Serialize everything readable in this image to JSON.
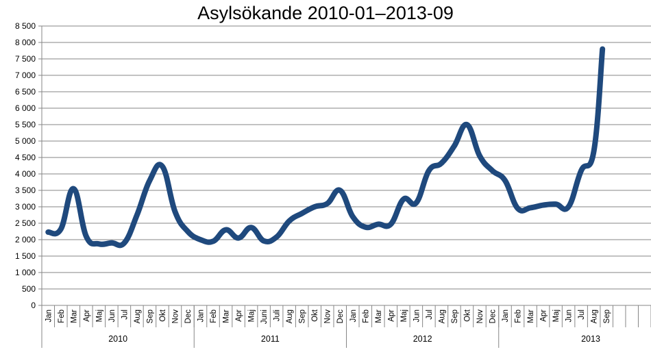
{
  "chart_data": {
    "type": "line",
    "title": "Asylsökande 2010-01–2013-09",
    "xlabel": "",
    "ylabel": "",
    "ylim": [
      0,
      8500
    ],
    "ytick_step": 500,
    "ytick_labels": [
      "0",
      "500",
      "1 000",
      "1 500",
      "2 000",
      "2 500",
      "3 000",
      "3 500",
      "4 000",
      "4 500",
      "5 000",
      "5 500",
      "6 000",
      "6 500",
      "7 000",
      "7 500",
      "8 000",
      "8 500"
    ],
    "grid": true,
    "legend": "none",
    "line_color": "#1F497D",
    "years": [
      {
        "label": "2010",
        "months": [
          "Jan",
          "Feb",
          "Mar",
          "Apr",
          "Maj",
          "Jun",
          "Jul",
          "Aug",
          "Sep",
          "Okt",
          "Nov",
          "Dec"
        ]
      },
      {
        "label": "2011",
        "months": [
          "Jan",
          "Feb",
          "Mar",
          "Apr",
          "Maj",
          "Juni",
          "Juli",
          "Aug",
          "Sep",
          "Okt",
          "Nov",
          "Dec"
        ]
      },
      {
        "label": "2012",
        "months": [
          "Jan",
          "Feb",
          "Mar",
          "Apr",
          "Maj",
          "Jun",
          "Jul",
          "Aug",
          "Sep",
          "Okt",
          "Nov",
          "Dec"
        ]
      },
      {
        "label": "2013",
        "months": [
          "Jan",
          "Feb",
          "Mar",
          "Apr",
          "Maj",
          "Jun",
          "Jul",
          "Aug",
          "Sep"
        ]
      }
    ],
    "values": [
      2230,
      2320,
      3550,
      2100,
      1870,
      1900,
      1900,
      2750,
      3800,
      4230,
      2850,
      2250,
      2000,
      1950,
      2300,
      2050,
      2370,
      1960,
      2080,
      2570,
      2800,
      3000,
      3100,
      3500,
      2700,
      2380,
      2470,
      2470,
      3230,
      3120,
      4100,
      4330,
      4850,
      5500,
      4550,
      4100,
      3800,
      2950,
      2970,
      3050,
      3080,
      3000,
      4100,
      4700,
      7800
    ]
  }
}
